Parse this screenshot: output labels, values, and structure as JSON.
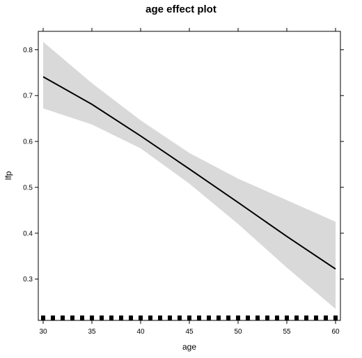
{
  "chart_data": {
    "type": "line",
    "title": "age effect plot",
    "xlabel": "age",
    "ylabel": "lfp",
    "xlim": [
      29.5,
      60.5
    ],
    "ylim": [
      0.21,
      0.84
    ],
    "x_ticks": [
      30,
      35,
      40,
      45,
      50,
      55,
      60
    ],
    "x_tick_labels": [
      "30",
      "35",
      "40",
      "45",
      "50",
      "55",
      "60"
    ],
    "y_ticks": [
      0.3,
      0.4,
      0.5,
      0.6,
      0.7,
      0.8
    ],
    "y_tick_labels": [
      "0.3",
      "0.4",
      "0.5",
      "0.6",
      "0.7",
      "0.8"
    ],
    "grid": false,
    "legend": "none",
    "colors": {
      "line": "#000000",
      "band": "#d9d9d9",
      "rug": "#000000"
    },
    "series": [
      {
        "x": [
          30,
          35,
          40,
          45,
          50,
          55,
          60
        ],
        "values": [
          0.741,
          0.681,
          0.612,
          0.54,
          0.467,
          0.393,
          0.322
        ],
        "lower": [
          0.672,
          0.637,
          0.585,
          0.508,
          0.42,
          0.325,
          0.235
        ],
        "upper": [
          0.817,
          0.727,
          0.646,
          0.575,
          0.519,
          0.472,
          0.425
        ]
      }
    ],
    "rug_x": [
      30,
      31,
      32,
      33,
      34,
      35,
      36,
      37,
      38,
      39,
      40,
      41,
      42,
      43,
      44,
      45,
      46,
      47,
      48,
      49,
      50,
      51,
      52,
      53,
      54,
      55,
      56,
      57,
      58,
      59,
      60
    ]
  }
}
